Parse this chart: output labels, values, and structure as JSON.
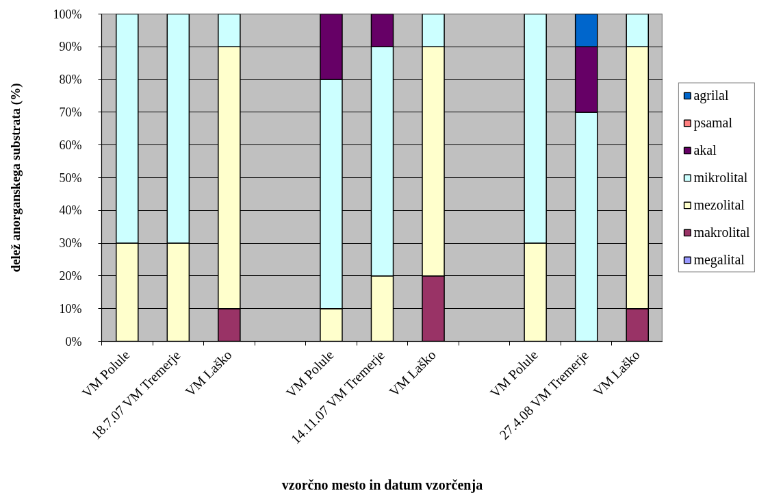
{
  "chart_data": {
    "type": "bar",
    "stacked": true,
    "xlabel": "vzorčno mesto in datum vzorčenja",
    "ylabel": "delež anorganskega substrata (%)",
    "categories": [
      "VM Polule",
      "18.7.07 VM Tremerje",
      "VM Laško",
      null,
      "VM Polule",
      "14.11.07 VM Tremerje",
      "VM Laško",
      null,
      "VM Polule",
      "27.4.08 VM Tremerje",
      "VM Laško"
    ],
    "series": [
      {
        "name": "megalital",
        "color": "#9999ff",
        "values": [
          0,
          0,
          0,
          null,
          0,
          0,
          0,
          null,
          0,
          0,
          0
        ]
      },
      {
        "name": "makrolital",
        "color": "#993366",
        "values": [
          0,
          0,
          10,
          null,
          0,
          0,
          20,
          null,
          0,
          0,
          10
        ]
      },
      {
        "name": "mezolital",
        "color": "#ffffcc",
        "values": [
          30,
          30,
          80,
          null,
          10,
          20,
          70,
          null,
          30,
          0,
          80
        ]
      },
      {
        "name": "mikrolital",
        "color": "#ccffff",
        "values": [
          70,
          70,
          10,
          null,
          70,
          70,
          10,
          null,
          70,
          70,
          10
        ]
      },
      {
        "name": "akal",
        "color": "#660066",
        "values": [
          0,
          0,
          0,
          null,
          20,
          10,
          0,
          null,
          0,
          20,
          0
        ]
      },
      {
        "name": "psamal",
        "color": "#ff8080",
        "values": [
          0,
          0,
          0,
          null,
          0,
          0,
          0,
          null,
          0,
          0,
          0
        ]
      },
      {
        "name": "agrilal",
        "color": "#0066cc",
        "values": [
          0,
          0,
          0,
          null,
          0,
          0,
          0,
          null,
          0,
          10,
          0
        ]
      }
    ],
    "ylim": [
      0,
      100
    ],
    "yticks": [
      {
        "value": 0,
        "label": "0%"
      },
      {
        "value": 10,
        "label": "10%"
      },
      {
        "value": 20,
        "label": "20%"
      },
      {
        "value": 30,
        "label": "30%"
      },
      {
        "value": 40,
        "label": "40%"
      },
      {
        "value": 50,
        "label": "50%"
      },
      {
        "value": 60,
        "label": "60%"
      },
      {
        "value": 70,
        "label": "70%"
      },
      {
        "value": 80,
        "label": "80%"
      },
      {
        "value": 90,
        "label": "90%"
      },
      {
        "value": 100,
        "label": "100%"
      }
    ],
    "grid": "y",
    "legend": "right"
  }
}
